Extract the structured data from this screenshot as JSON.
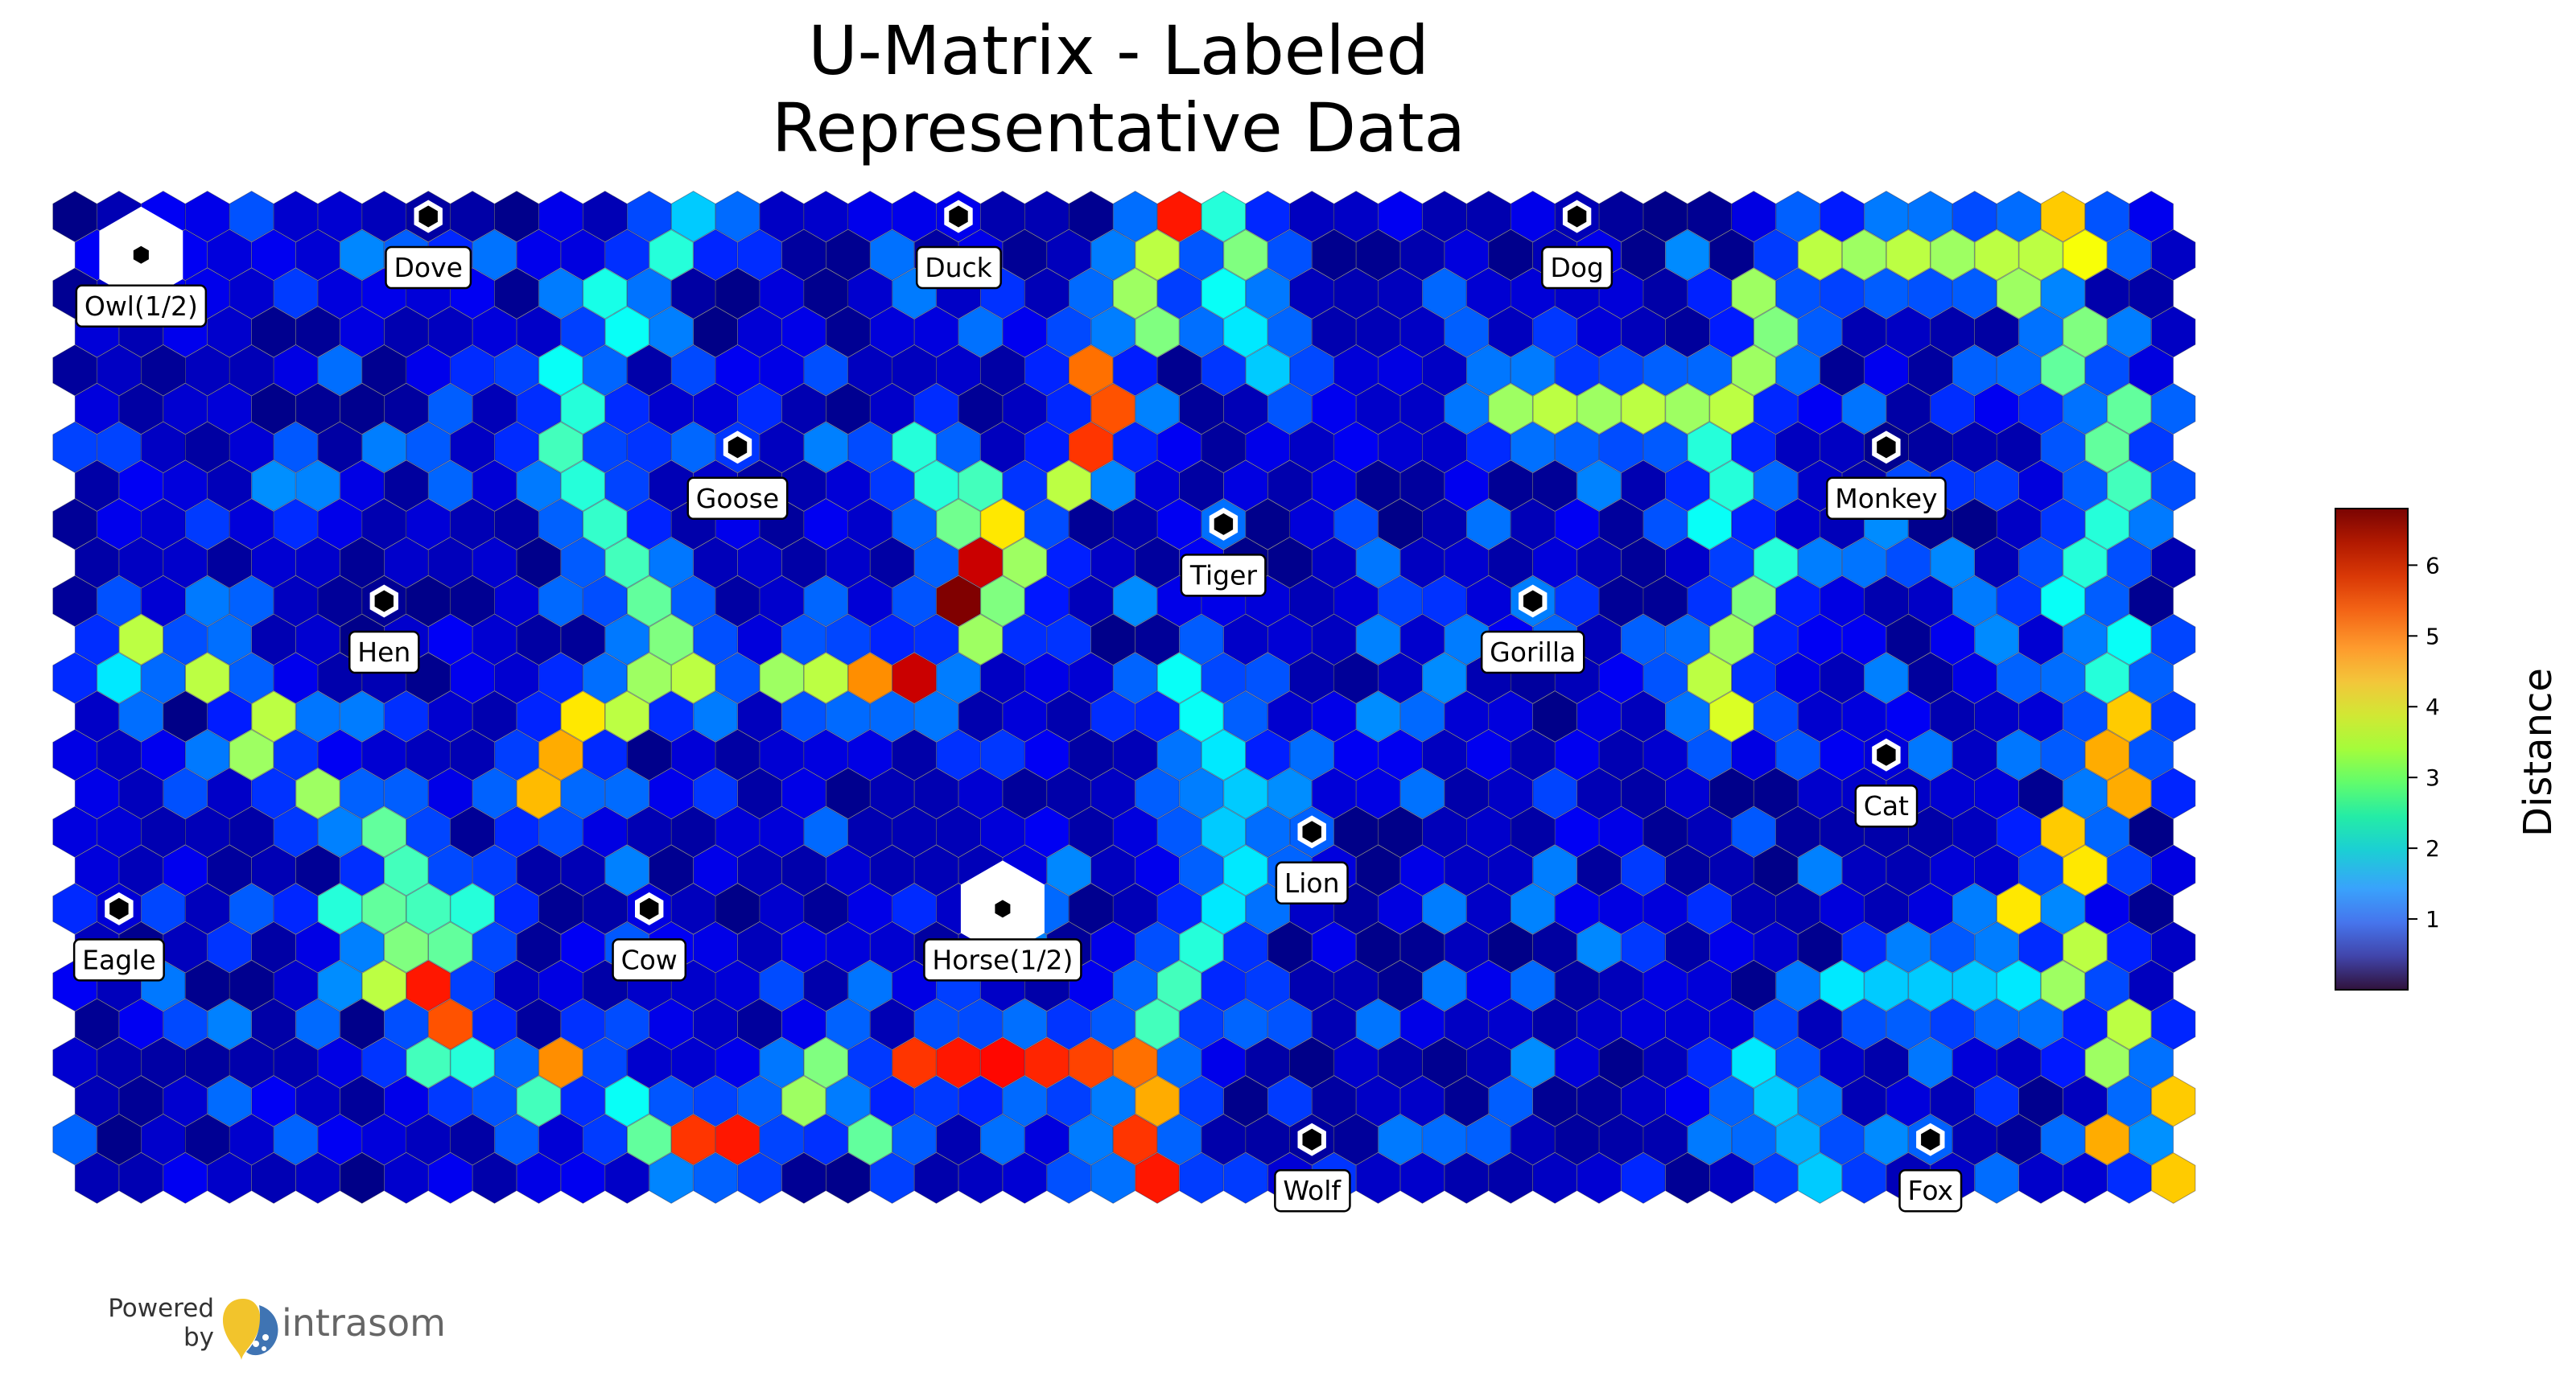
{
  "chart_data": {
    "type": "heatmap",
    "subtype": "hexagonal-u-matrix",
    "title_lines": [
      "U-Matrix - Labeled",
      "Representative Data"
    ],
    "grid": {
      "columns": 48,
      "rows": 24,
      "layout": "hexagonal, odd rows shifted right"
    },
    "colormap": "jet",
    "value_range": [
      0.0,
      6.8
    ],
    "colorbar": {
      "label": "Distance",
      "ticks": [
        1,
        2,
        3,
        4,
        5,
        6
      ],
      "placement": "right"
    },
    "nodes": [
      {
        "label": "Dove",
        "col": 8,
        "row": 0,
        "size": "small"
      },
      {
        "label": "Duck",
        "col": 20,
        "row": 0,
        "size": "small"
      },
      {
        "label": "Dog",
        "col": 34,
        "row": 0,
        "size": "small"
      },
      {
        "label": "Owl(1/2)",
        "col": 1,
        "row": 1,
        "size": "large"
      },
      {
        "label": "Goose",
        "col": 15,
        "row": 6,
        "size": "small"
      },
      {
        "label": "Monkey",
        "col": 41,
        "row": 6,
        "size": "small"
      },
      {
        "label": "Tiger",
        "col": 26,
        "row": 8,
        "size": "small"
      },
      {
        "label": "Hen",
        "col": 7,
        "row": 10,
        "size": "small"
      },
      {
        "label": "Gorilla",
        "col": 33,
        "row": 10,
        "size": "small"
      },
      {
        "label": "Cat",
        "col": 41,
        "row": 14,
        "size": "small"
      },
      {
        "label": "Lion",
        "col": 28,
        "row": 16,
        "size": "small"
      },
      {
        "label": "Eagle",
        "col": 1,
        "row": 18,
        "size": "small"
      },
      {
        "label": "Cow",
        "col": 13,
        "row": 18,
        "size": "small"
      },
      {
        "label": "Horse(1/2)",
        "col": 21,
        "row": 18,
        "size": "large"
      },
      {
        "label": "Wolf",
        "col": 28,
        "row": 24,
        "size": "small"
      },
      {
        "label": "Fox",
        "col": 42,
        "row": 24,
        "size": "small"
      }
    ],
    "high_distance_ridges": [
      {
        "path": [
          [
            25,
            0
          ],
          [
            24,
            1
          ],
          [
            24,
            2
          ],
          [
            24,
            3
          ],
          [
            23,
            4
          ],
          [
            23,
            5
          ],
          [
            23,
            6
          ],
          [
            22,
            7
          ],
          [
            21,
            8
          ],
          [
            21,
            9
          ],
          [
            21,
            10
          ],
          [
            20,
            11
          ],
          [
            19,
            12
          ],
          [
            18,
            12
          ],
          [
            17,
            12
          ],
          [
            16,
            12
          ],
          [
            14,
            12
          ],
          [
            13,
            12
          ],
          [
            12,
            13
          ],
          [
            11,
            13
          ],
          [
            11,
            14
          ],
          [
            10,
            15
          ]
        ],
        "values": [
          5.8,
          3.8,
          3.6,
          3.4,
          5.2,
          5.4,
          5.6,
          3.8,
          4.4,
          3.6,
          3.4,
          3.6,
          6.3,
          5.0,
          3.8,
          3.6,
          3.8,
          3.6,
          3.8,
          4.4,
          4.8,
          4.7
        ]
      },
      {
        "path": [
          [
            20,
            10
          ],
          [
            20,
            9
          ],
          [
            20,
            8
          ],
          [
            20,
            7
          ],
          [
            19,
            7
          ],
          [
            19,
            6
          ]
        ],
        "values": [
          6.8,
          6.3,
          3.3,
          3.0,
          2.8,
          2.8
        ]
      },
      {
        "path": [
          [
            14,
            0
          ],
          [
            13,
            1
          ],
          [
            12,
            2
          ],
          [
            12,
            3
          ],
          [
            11,
            4
          ],
          [
            11,
            5
          ],
          [
            11,
            6
          ],
          [
            11,
            7
          ],
          [
            12,
            8
          ],
          [
            12,
            9
          ],
          [
            13,
            10
          ],
          [
            13,
            11
          ],
          [
            13,
            12
          ]
        ],
        "values": [
          2.2,
          2.8,
          2.7,
          2.6,
          2.6,
          2.8,
          3.0,
          2.8,
          2.9,
          3.0,
          3.2,
          3.4,
          3.6
        ]
      },
      {
        "path": [
          [
            26,
            0
          ],
          [
            26,
            1
          ],
          [
            26,
            2
          ],
          [
            26,
            3
          ],
          [
            27,
            4
          ]
        ],
        "values": [
          2.8,
          3.4,
          2.6,
          2.4,
          2.2
        ]
      },
      {
        "path": [
          [
            25,
            12
          ],
          [
            25,
            13
          ],
          [
            26,
            14
          ],
          [
            26,
            15
          ],
          [
            26,
            16
          ],
          [
            26,
            17
          ],
          [
            26,
            18
          ],
          [
            25,
            19
          ],
          [
            25,
            20
          ],
          [
            24,
            21
          ],
          [
            24,
            22
          ],
          [
            24,
            23
          ],
          [
            24,
            24
          ],
          [
            24,
            25
          ]
        ],
        "values": [
          2.6,
          2.6,
          2.4,
          2.2,
          2.2,
          2.4,
          2.4,
          2.8,
          3.0,
          3.0,
          3.6,
          4.8,
          5.6,
          5.8
        ]
      },
      {
        "path": [
          [
            19,
            22
          ],
          [
            20,
            22
          ],
          [
            21,
            22
          ],
          [
            22,
            22
          ],
          [
            23,
            22
          ],
          [
            24,
            22
          ]
        ],
        "values": [
          5.6,
          5.8,
          5.9,
          5.7,
          5.5,
          5.2
        ]
      },
      {
        "path": [
          [
            8,
            20
          ],
          [
            8,
            21
          ],
          [
            7,
            20
          ],
          [
            11,
            22
          ],
          [
            14,
            24
          ],
          [
            15,
            24
          ]
        ],
        "values": [
          5.8,
          5.4,
          3.8,
          5.0,
          5.6,
          5.8
        ]
      },
      {
        "path": [
          [
            7,
            16
          ],
          [
            7,
            17
          ],
          [
            7,
            18
          ],
          [
            8,
            18
          ],
          [
            9,
            18
          ],
          [
            7,
            19
          ],
          [
            8,
            19
          ],
          [
            8,
            22
          ],
          [
            9,
            22
          ],
          [
            10,
            23
          ],
          [
            12,
            23
          ],
          [
            13,
            24
          ],
          [
            16,
            23
          ],
          [
            17,
            22
          ],
          [
            18,
            24
          ],
          [
            6,
            18
          ]
        ],
        "values": [
          3.2,
          3.0,
          3.2,
          3.0,
          2.8,
          3.4,
          3.2,
          3.0,
          2.8,
          3.0,
          2.6,
          3.2,
          3.6,
          3.4,
          3.2,
          2.8
        ]
      },
      {
        "path": [
          [
            3,
            12
          ],
          [
            4,
            13
          ],
          [
            4,
            14
          ],
          [
            5,
            15
          ],
          [
            1,
            11
          ],
          [
            1,
            12
          ]
        ],
        "values": [
          3.8,
          3.8,
          3.6,
          3.6,
          3.8,
          2.4
        ]
      },
      {
        "path": [
          [
            45,
            0
          ],
          [
            45,
            1
          ],
          [
            44,
            1
          ],
          [
            44,
            2
          ],
          [
            45,
            3
          ],
          [
            45,
            4
          ],
          [
            46,
            5
          ],
          [
            46,
            6
          ],
          [
            46,
            7
          ],
          [
            46,
            8
          ],
          [
            45,
            9
          ],
          [
            45,
            10
          ],
          [
            46,
            11
          ],
          [
            46,
            12
          ],
          [
            46,
            13
          ],
          [
            46,
            14
          ],
          [
            46,
            15
          ],
          [
            45,
            16
          ],
          [
            45,
            17
          ],
          [
            44,
            18
          ],
          [
            45,
            19
          ],
          [
            45,
            20
          ],
          [
            46,
            21
          ],
          [
            46,
            22
          ],
          [
            47,
            23
          ],
          [
            46,
            24
          ],
          [
            47,
            25
          ]
        ],
        "values": [
          4.6,
          4.2,
          3.8,
          3.6,
          3.4,
          3.2,
          3.2,
          3.2,
          3.0,
          2.8,
          2.8,
          2.6,
          2.6,
          2.8,
          4.6,
          4.8,
          4.8,
          4.6,
          4.4,
          4.4,
          3.8,
          3.6,
          3.8,
          3.6,
          4.6,
          4.8,
          4.6
        ]
      },
      {
        "path": [
          [
            43,
            1
          ],
          [
            42,
            1
          ],
          [
            41,
            1
          ],
          [
            40,
            1
          ],
          [
            39,
            1
          ],
          [
            38,
            2
          ],
          [
            38,
            3
          ],
          [
            38,
            4
          ],
          [
            37,
            5
          ],
          [
            36,
            5
          ],
          [
            35,
            5
          ],
          [
            34,
            5
          ],
          [
            33,
            5
          ],
          [
            32,
            5
          ]
        ],
        "values": [
          3.8,
          3.6,
          3.8,
          3.6,
          3.8,
          3.6,
          3.4,
          3.6,
          3.8,
          3.6,
          3.8,
          3.6,
          3.8,
          3.6
        ]
      },
      {
        "path": [
          [
            37,
            6
          ],
          [
            37,
            7
          ],
          [
            37,
            8
          ],
          [
            38,
            9
          ],
          [
            38,
            10
          ],
          [
            37,
            11
          ],
          [
            37,
            12
          ],
          [
            37,
            13
          ]
        ],
        "values": [
          2.8,
          2.8,
          2.6,
          2.8,
          3.4,
          3.6,
          3.8,
          4.0
        ]
      },
      {
        "path": [
          [
            40,
            20
          ],
          [
            41,
            20
          ],
          [
            42,
            20
          ],
          [
            43,
            20
          ],
          [
            44,
            20
          ]
        ],
        "values": [
          2.4,
          2.2,
          2.2,
          2.2,
          2.4
        ]
      },
      {
        "path": [
          [
            38,
            22
          ],
          [
            38,
            23
          ],
          [
            39,
            24
          ],
          [
            39,
            25
          ]
        ],
        "values": [
          2.4,
          2.2,
          2.0,
          2.2
        ]
      }
    ]
  },
  "footer": {
    "powered_line1": "Powered",
    "powered_line2": "by",
    "brand": "intrasom"
  }
}
